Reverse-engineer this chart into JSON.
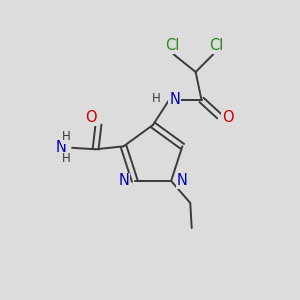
{
  "bg_color": "#dcdcdc",
  "atom_colors": {
    "N": "#0000bb",
    "O": "#cc0000",
    "Cl": "#228b22",
    "bond": "#3a3a3a",
    "H": "#3a3a3a"
  },
  "font_size_atom": 10.5,
  "font_size_small": 8.5,
  "lw": 1.4
}
